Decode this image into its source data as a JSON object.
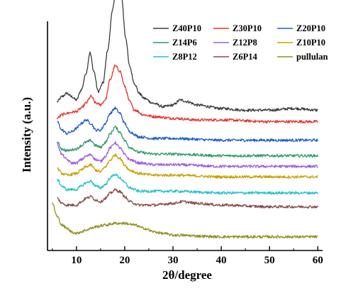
{
  "chart_data": {
    "type": "line",
    "title": "",
    "xlabel": "2θ/degree",
    "ylabel": "Intensity (a.u.)",
    "xlim": [
      4,
      61
    ],
    "x_ticks": [
      10,
      20,
      30,
      40,
      50,
      60
    ],
    "y_ticks_shown": false,
    "legend_position": "top-right",
    "legend_columns": 3,
    "grid": false,
    "series": [
      {
        "name": "Z40P10",
        "color": "#3c3c3c",
        "baseline": 0.79,
        "points": [
          [
            6,
            0.07
          ],
          [
            7,
            0.1
          ],
          [
            8,
            0.12
          ],
          [
            9,
            0.1
          ],
          [
            10,
            0.08
          ],
          [
            11,
            0.14
          ],
          [
            12,
            0.24
          ],
          [
            12.8,
            0.36
          ],
          [
            13.6,
            0.25
          ],
          [
            14.5,
            0.13
          ],
          [
            15.5,
            0.18
          ],
          [
            16.5,
            0.38
          ],
          [
            17.5,
            0.62
          ],
          [
            18.5,
            0.82
          ],
          [
            19.3,
            0.7
          ],
          [
            20.2,
            0.45
          ],
          [
            21,
            0.28
          ],
          [
            22,
            0.18
          ],
          [
            23,
            0.12
          ],
          [
            24,
            0.09
          ],
          [
            26,
            0.06
          ],
          [
            28,
            0.04
          ],
          [
            30,
            0.05
          ],
          [
            31.5,
            0.08
          ],
          [
            33,
            0.07
          ],
          [
            35,
            0.05
          ],
          [
            40,
            0.03
          ],
          [
            45,
            0.02
          ],
          [
            50,
            0.02
          ],
          [
            55,
            0.03
          ],
          [
            60,
            0.02
          ]
        ]
      },
      {
        "name": "Z30P10",
        "color": "#e8312b",
        "baseline": 0.732,
        "points": [
          [
            6,
            0.03
          ],
          [
            7,
            0.05
          ],
          [
            8,
            0.06
          ],
          [
            10,
            0.07
          ],
          [
            11,
            0.09
          ],
          [
            12,
            0.12
          ],
          [
            13,
            0.16
          ],
          [
            14,
            0.12
          ],
          [
            15,
            0.11
          ],
          [
            16,
            0.14
          ],
          [
            17,
            0.26
          ],
          [
            18,
            0.34
          ],
          [
            19,
            0.31
          ],
          [
            20,
            0.22
          ],
          [
            21,
            0.13
          ],
          [
            22,
            0.08
          ],
          [
            24,
            0.05
          ],
          [
            26,
            0.04
          ],
          [
            30,
            0.03
          ],
          [
            35,
            0.02
          ],
          [
            40,
            0.02
          ],
          [
            50,
            0.01
          ],
          [
            60,
            0.01
          ]
        ]
      },
      {
        "name": "Z20P10",
        "color": "#1e5dc8",
        "baseline": 0.622,
        "points": [
          [
            6,
            0.12
          ],
          [
            7,
            0.07
          ],
          [
            8,
            0.05
          ],
          [
            9,
            0.06
          ],
          [
            10,
            0.08
          ],
          [
            11,
            0.11
          ],
          [
            12,
            0.13
          ],
          [
            13,
            0.11
          ],
          [
            14,
            0.07
          ],
          [
            15,
            0.07
          ],
          [
            16,
            0.11
          ],
          [
            17,
            0.17
          ],
          [
            18,
            0.2
          ],
          [
            19,
            0.17
          ],
          [
            20,
            0.11
          ],
          [
            21,
            0.06
          ],
          [
            23,
            0.03
          ],
          [
            26,
            0.02
          ],
          [
            30,
            0.02
          ],
          [
            40,
            0.01
          ],
          [
            50,
            0.01
          ],
          [
            60,
            0.01
          ]
        ]
      },
      {
        "name": "Z14P6",
        "color": "#2e9a6a",
        "baseline": 0.53,
        "points": [
          [
            6,
            0.09
          ],
          [
            7,
            0.05
          ],
          [
            8,
            0.04
          ],
          [
            10,
            0.05
          ],
          [
            11,
            0.07
          ],
          [
            12,
            0.09
          ],
          [
            13,
            0.1
          ],
          [
            14,
            0.07
          ],
          [
            15,
            0.06
          ],
          [
            16,
            0.09
          ],
          [
            17,
            0.14
          ],
          [
            18,
            0.18
          ],
          [
            19,
            0.15
          ],
          [
            20,
            0.1
          ],
          [
            21,
            0.06
          ],
          [
            23,
            0.03
          ],
          [
            26,
            0.02
          ],
          [
            30,
            0.02
          ],
          [
            40,
            0.01
          ],
          [
            60,
            0.01
          ]
        ]
      },
      {
        "name": "Z12P8",
        "color": "#9b5fe0",
        "baseline": 0.467,
        "points": [
          [
            6,
            0.14
          ],
          [
            7,
            0.08
          ],
          [
            8,
            0.05
          ],
          [
            9,
            0.03
          ],
          [
            10,
            0.03
          ],
          [
            11,
            0.05
          ],
          [
            12,
            0.07
          ],
          [
            13,
            0.08
          ],
          [
            14,
            0.05
          ],
          [
            15,
            0.04
          ],
          [
            16,
            0.07
          ],
          [
            17,
            0.12
          ],
          [
            18,
            0.15
          ],
          [
            19,
            0.12
          ],
          [
            20,
            0.08
          ],
          [
            21,
            0.05
          ],
          [
            23,
            0.03
          ],
          [
            26,
            0.02
          ],
          [
            30,
            0.02
          ],
          [
            40,
            0.01
          ],
          [
            60,
            0.01
          ]
        ]
      },
      {
        "name": "Z10P10",
        "color": "#c9a000",
        "baseline": 0.405,
        "points": [
          [
            6,
            0.06
          ],
          [
            7,
            0.03
          ],
          [
            8,
            0.02
          ],
          [
            10,
            0.03
          ],
          [
            11,
            0.05
          ],
          [
            12,
            0.07
          ],
          [
            13,
            0.08
          ],
          [
            14,
            0.05
          ],
          [
            15,
            0.04
          ],
          [
            16,
            0.07
          ],
          [
            17,
            0.11
          ],
          [
            18,
            0.14
          ],
          [
            19,
            0.12
          ],
          [
            20,
            0.08
          ],
          [
            21,
            0.05
          ],
          [
            23,
            0.03
          ],
          [
            26,
            0.02
          ],
          [
            30,
            0.02
          ],
          [
            40,
            0.01
          ],
          [
            60,
            0.01
          ]
        ]
      },
      {
        "name": "Z8P12",
        "color": "#24c0c8",
        "baseline": 0.31,
        "points": [
          [
            6,
            0.09
          ],
          [
            7,
            0.05
          ],
          [
            8,
            0.03
          ],
          [
            10,
            0.03
          ],
          [
            11,
            0.05
          ],
          [
            12,
            0.07
          ],
          [
            13,
            0.08
          ],
          [
            14,
            0.05
          ],
          [
            15,
            0.04
          ],
          [
            16,
            0.06
          ],
          [
            17,
            0.1
          ],
          [
            18,
            0.12
          ],
          [
            19,
            0.1
          ],
          [
            20,
            0.07
          ],
          [
            21,
            0.04
          ],
          [
            23,
            0.02
          ],
          [
            26,
            0.02
          ],
          [
            30,
            0.02
          ],
          [
            40,
            0.01
          ],
          [
            60,
            0.01
          ]
        ]
      },
      {
        "name": "Z6P14",
        "color": "#8b4a4a",
        "baseline": 0.228,
        "points": [
          [
            6,
            0.06
          ],
          [
            7,
            0.03
          ],
          [
            8,
            0.02
          ],
          [
            10,
            0.02
          ],
          [
            11,
            0.04
          ],
          [
            12,
            0.06
          ],
          [
            13,
            0.07
          ],
          [
            14,
            0.05
          ],
          [
            15,
            0.04
          ],
          [
            16,
            0.06
          ],
          [
            17,
            0.09
          ],
          [
            18,
            0.11
          ],
          [
            19,
            0.1
          ],
          [
            20,
            0.07
          ],
          [
            21,
            0.04
          ],
          [
            23,
            0.02
          ],
          [
            26,
            0.02
          ],
          [
            30,
            0.03
          ],
          [
            32,
            0.04
          ],
          [
            35,
            0.03
          ],
          [
            40,
            0.02
          ],
          [
            50,
            0.01
          ],
          [
            60,
            0.01
          ]
        ]
      },
      {
        "name": "pullulan",
        "color": "#8f8f1f",
        "baseline": 0.06,
        "points": [
          [
            5,
            0.2
          ],
          [
            6,
            0.12
          ],
          [
            7,
            0.07
          ],
          [
            8,
            0.05
          ],
          [
            9,
            0.03
          ],
          [
            10,
            0.02
          ],
          [
            11,
            0.03
          ],
          [
            12,
            0.04
          ],
          [
            13,
            0.05
          ],
          [
            14,
            0.06
          ],
          [
            16,
            0.07
          ],
          [
            18,
            0.08
          ],
          [
            20,
            0.08
          ],
          [
            22,
            0.07
          ],
          [
            24,
            0.05
          ],
          [
            26,
            0.03
          ],
          [
            28,
            0.02
          ],
          [
            30,
            0.01
          ],
          [
            40,
            0.0
          ],
          [
            50,
            0.0
          ],
          [
            60,
            0.0
          ]
        ]
      }
    ]
  }
}
